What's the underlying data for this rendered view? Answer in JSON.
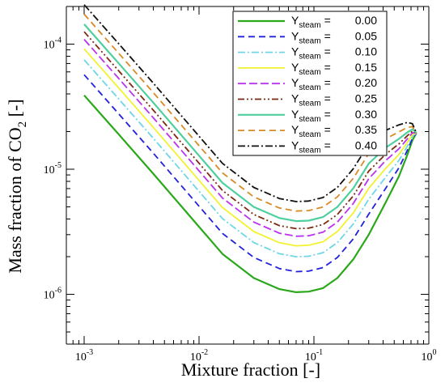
{
  "chart_data": {
    "type": "line",
    "xlabel": "Mixture fraction [-]",
    "ylabel": "Mass fraction of CO",
    "ylabel_subscript": "2",
    "ylabel_suffix": " [-]",
    "x_scale": "log",
    "y_scale": "log",
    "xlim": [
      0.0007,
      1.0
    ],
    "ylim": [
      4e-07,
      0.0002
    ],
    "grid": false,
    "legend_position": "top-right",
    "x_ticks": [
      {
        "value": 0.001,
        "base": "10",
        "exp": "-3"
      },
      {
        "value": 0.01,
        "base": "10",
        "exp": "-2"
      },
      {
        "value": 0.1,
        "base": "10",
        "exp": "-1"
      },
      {
        "value": 1,
        "base": "10",
        "exp": "0"
      }
    ],
    "y_ticks": [
      {
        "value": 1e-06,
        "base": "10",
        "exp": "-6"
      },
      {
        "value": 1e-05,
        "base": "10",
        "exp": "-5"
      },
      {
        "value": 0.0001,
        "base": "10",
        "exp": "-4"
      }
    ],
    "legend_symbol": "Y",
    "legend_subscript": "steam",
    "legend_equals": "=",
    "series": [
      {
        "name": "0.00",
        "color": "#2aa81a",
        "dash": "",
        "width": 2.2,
        "scale": 1.0
      },
      {
        "name": "0.05",
        "color": "#2222dd",
        "dash": "8,5",
        "width": 1.8,
        "scale": 1.46
      },
      {
        "name": "0.10",
        "color": "#6fd6e6",
        "dash": "9,3,2,3",
        "width": 1.8,
        "scale": 1.92
      },
      {
        "name": "0.15",
        "color": "#f2f230",
        "dash": "",
        "width": 1.8,
        "scale": 2.35
      },
      {
        "name": "0.20",
        "color": "#bb33ee",
        "dash": "10,4",
        "width": 1.8,
        "scale": 2.8
      },
      {
        "name": "0.25",
        "color": "#7a2a10",
        "dash": "8,3,2,3,2,3",
        "width": 1.8,
        "scale": 3.22
      },
      {
        "name": "0.30",
        "color": "#4ecf9e",
        "dash": "",
        "width": 2.2,
        "scale": 3.7
      },
      {
        "name": "0.35",
        "color": "#d98a24",
        "dash": "8,5",
        "width": 1.8,
        "scale": 4.45
      },
      {
        "name": "0.40",
        "color": "#111111",
        "dash": "9,3,2,3",
        "width": 1.8,
        "scale": 5.3
      }
    ],
    "base_curve_x": [
      0.001,
      0.002,
      0.004,
      0.008,
      0.016,
      0.03,
      0.05,
      0.07,
      0.09,
      0.12,
      0.16,
      0.22,
      0.3,
      0.42,
      0.55,
      0.65,
      0.72,
      0.78
    ],
    "base_curve_y": [
      3.9e-05,
      1.9e-05,
      9.2e-06,
      4.4e-06,
      2.1e-06,
      1.35e-06,
      1.1e-06,
      1.04e-06,
      1.05e-06,
      1.12e-06,
      1.35e-06,
      1.9e-06,
      3e-06,
      5.4e-06,
      8.8e-06,
      1.3e-05,
      1.7e-05,
      1.95e-05
    ],
    "convergence_y_at_end": 1.95e-05
  }
}
